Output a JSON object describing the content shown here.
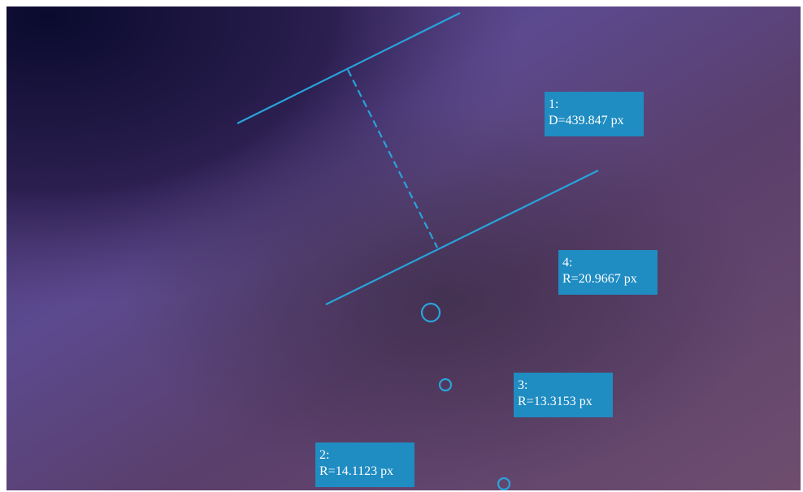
{
  "annotations": [
    {
      "id": "1:",
      "text": "D=439.847 px"
    },
    {
      "id": "4:",
      "text": "R=20.9667 px"
    },
    {
      "id": "3:",
      "text": "R=13.3153 px"
    },
    {
      "id": "2:",
      "text": "R=14.1123 px"
    }
  ]
}
